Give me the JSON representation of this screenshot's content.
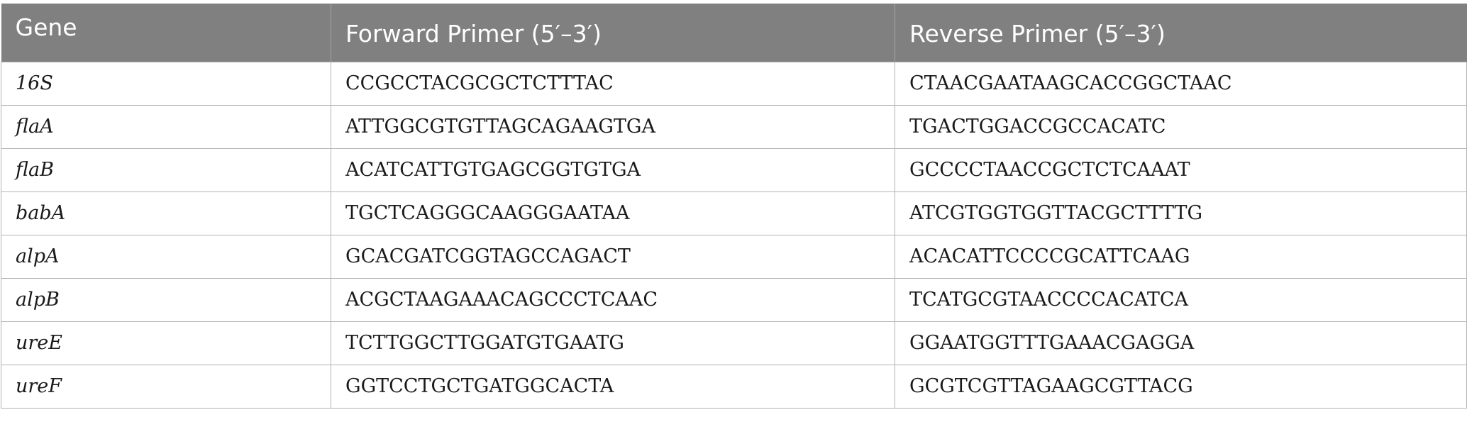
{
  "table": {
    "headers": {
      "gene": "Gene",
      "forward": "Forward Primer (5′–3′)",
      "reverse": "Reverse Primer (5′–3′)"
    },
    "rows": [
      {
        "gene": "16S",
        "forward": "CCGCCTACGCGCTCTTTAC",
        "reverse": "CTAACGAATAAGCACCGGCTAAC"
      },
      {
        "gene": "flaA",
        "forward": "ATTGGCGTGTTAGCAGAAGTGA",
        "reverse": "TGACTGGACCGCCACATC"
      },
      {
        "gene": "flaB",
        "forward": "ACATCATTGTGAGCGGTGTGA",
        "reverse": "GCCCCTAACCGCTCTCAAAT"
      },
      {
        "gene": "babA",
        "forward": "TGCTCAGGGCAAGGGAATAA",
        "reverse": "ATCGTGGTGGTTACGCTTTTG"
      },
      {
        "gene": "alpA",
        "forward": "GCACGATCGGTAGCCAGACT",
        "reverse": "ACACATTCCCCGCATTCAAG"
      },
      {
        "gene": "alpB",
        "forward": "ACGCTAAGAAACAGCCCTCAAC",
        "reverse": "TCATGCGTAACCCCACATCA"
      },
      {
        "gene": "ureE",
        "forward": "TCTTGGCTTGGATGTGAATG",
        "reverse": "GGAATGGTTTGAAACGAGGA"
      },
      {
        "gene": "ureF",
        "forward": "GGTCCTGCTGATGGCACTA",
        "reverse": "GCGTCGTTAGAAGCGTTACG"
      }
    ]
  }
}
